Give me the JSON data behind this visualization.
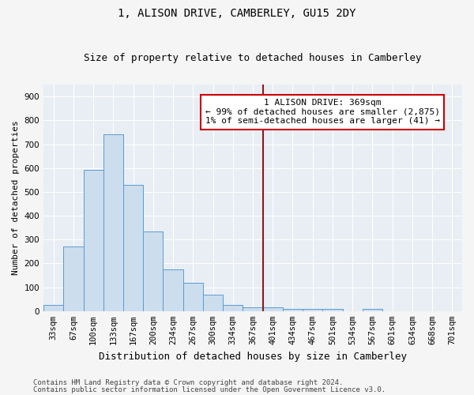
{
  "title": "1, ALISON DRIVE, CAMBERLEY, GU15 2DY",
  "subtitle": "Size of property relative to detached houses in Camberley",
  "xlabel": "Distribution of detached houses by size in Camberley",
  "ylabel": "Number of detached properties",
  "bar_labels": [
    "33sqm",
    "67sqm",
    "100sqm",
    "133sqm",
    "167sqm",
    "200sqm",
    "234sqm",
    "267sqm",
    "300sqm",
    "334sqm",
    "367sqm",
    "401sqm",
    "434sqm",
    "467sqm",
    "501sqm",
    "534sqm",
    "567sqm",
    "601sqm",
    "634sqm",
    "668sqm",
    "701sqm"
  ],
  "bar_values": [
    25,
    270,
    593,
    740,
    530,
    335,
    175,
    120,
    68,
    25,
    15,
    15,
    10,
    9,
    9,
    0,
    8,
    0,
    0,
    0,
    0
  ],
  "bar_color": "#ccdded",
  "bar_edge_color": "#5b9bd5",
  "vline_x_index": 10,
  "vline_color": "#8b1a1a",
  "annotation_text": "1 ALISON DRIVE: 369sqm\n← 99% of detached houses are smaller (2,875)\n1% of semi-detached houses are larger (41) →",
  "annotation_box_facecolor": "#ffffff",
  "annotation_box_edgecolor": "#cc0000",
  "ylim": [
    0,
    950
  ],
  "yticks": [
    0,
    100,
    200,
    300,
    400,
    500,
    600,
    700,
    800,
    900
  ],
  "plot_bg_color": "#e8eef4",
  "fig_bg_color": "#f5f5f5",
  "grid_color": "#ffffff",
  "footer_line1": "Contains HM Land Registry data © Crown copyright and database right 2024.",
  "footer_line2": "Contains public sector information licensed under the Open Government Licence v3.0.",
  "title_fontsize": 10,
  "subtitle_fontsize": 9,
  "xlabel_fontsize": 9,
  "ylabel_fontsize": 8,
  "tick_fontsize": 7.5,
  "annotation_fontsize": 8,
  "footer_fontsize": 6.5
}
